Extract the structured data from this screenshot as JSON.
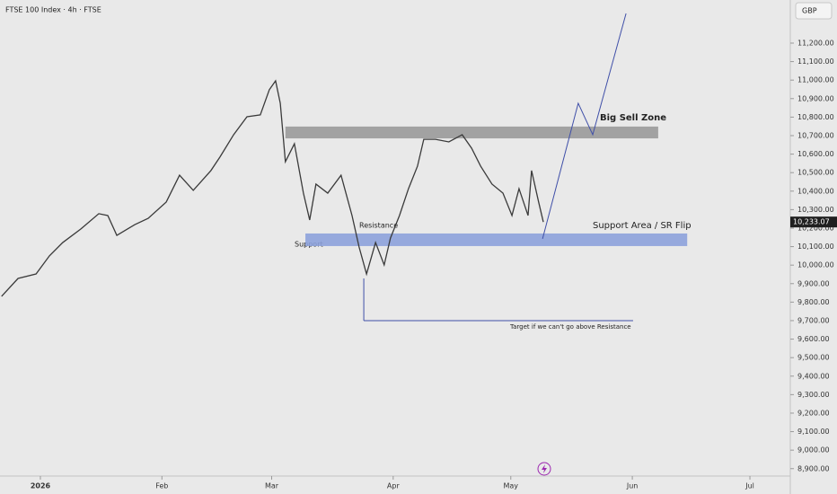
{
  "chart_data": {
    "type": "line",
    "title": "FTSE 100 Index · 4h · FTSE",
    "currency": "GBP",
    "x": [
      -9.9,
      -5.7,
      -1.1,
      2.3,
      5.7,
      10.3,
      14.9,
      17.2,
      19.5,
      24.1,
      27.5,
      32.1,
      35.5,
      39.0,
      43.5,
      45.8,
      49.3,
      52.7,
      56.1,
      58.4,
      60.0,
      61.2,
      62.5,
      64.8,
      67.1,
      68.7,
      70.3,
      73.3,
      76.7,
      79.5,
      81.3,
      83.2,
      85.5,
      87.7,
      89.3,
      91.6,
      93.9,
      96.2,
      97.8,
      100.8,
      104.2,
      107.6,
      110.0,
      112.3,
      115.2,
      118.0,
      120.3,
      122.1,
      124.4,
      125.3,
      127.1,
      128.3
    ],
    "series": [
      {
        "name": "FTSE 100 Index",
        "color": "#3a3a3a",
        "values": [
          9831,
          9928,
          9952,
          10050,
          10122,
          10195,
          10278,
          10268,
          10161,
          10219,
          10253,
          10341,
          10486,
          10404,
          10511,
          10584,
          10705,
          10802,
          10812,
          10948,
          10996,
          10875,
          10559,
          10656,
          10389,
          10244,
          10438,
          10389,
          10486,
          10268,
          10098,
          9952,
          10122,
          10001,
          10146,
          10268,
          10413,
          10535,
          10680,
          10680,
          10666,
          10705,
          10632,
          10535,
          10438,
          10389,
          10268,
          10413,
          10268,
          10511,
          10341,
          10233.07
        ]
      }
    ],
    "last_price": {
      "value": 10233.07,
      "label": "10,233.07"
    },
    "xlim": [
      -10.3,
      191.3
    ],
    "xticks": [
      {
        "value": 0,
        "label": "2026"
      },
      {
        "value": 31,
        "label": "Feb"
      },
      {
        "value": 59,
        "label": "Mar"
      },
      {
        "value": 90,
        "label": "Apr"
      },
      {
        "value": 120,
        "label": "May"
      },
      {
        "value": 151,
        "label": "Jun"
      },
      {
        "value": 181,
        "label": "Jul"
      }
    ],
    "ylim": [
      8860,
      11433
    ],
    "yticks": [
      {
        "value": 8900,
        "label": "8,900.00"
      },
      {
        "value": 9000,
        "label": "9,000.00"
      },
      {
        "value": 9100,
        "label": "9,100.00"
      },
      {
        "value": 9200,
        "label": "9,200.00"
      },
      {
        "value": 9300,
        "label": "9,300.00"
      },
      {
        "value": 9400,
        "label": "9,400.00"
      },
      {
        "value": 9500,
        "label": "9,500.00"
      },
      {
        "value": 9600,
        "label": "9,600.00"
      },
      {
        "value": 9700,
        "label": "9,700.00"
      },
      {
        "value": 9800,
        "label": "9,800.00"
      },
      {
        "value": 9900,
        "label": "9,900.00"
      },
      {
        "value": 10000,
        "label": "10,000.00"
      },
      {
        "value": 10100,
        "label": "10,100.00"
      },
      {
        "value": 10200,
        "label": "10,200.00"
      },
      {
        "value": 10300,
        "label": "10,300.00"
      },
      {
        "value": 10400,
        "label": "10,400.00"
      },
      {
        "value": 10500,
        "label": "10,500.00"
      },
      {
        "value": 10600,
        "label": "10,600.00"
      },
      {
        "value": 10700,
        "label": "10,700.00"
      },
      {
        "value": 10800,
        "label": "10,800.00"
      },
      {
        "value": 10900,
        "label": "10,900.00"
      },
      {
        "value": 11000,
        "label": "11,000.00"
      },
      {
        "value": 11100,
        "label": "11,100.00"
      },
      {
        "value": 11200,
        "label": "11,200.00"
      }
    ],
    "zones": [
      {
        "label": "Big Sell Zone",
        "x": [
          62.5,
          157.6
        ],
        "y": [
          10685,
          10749
        ],
        "color": "#9a9a9a"
      },
      {
        "label": "Support Area / SR Flip",
        "x": [
          67.6,
          165
        ],
        "y": [
          10103,
          10171
        ],
        "color": "#8da2dc"
      }
    ],
    "projection": {
      "x": [
        128.1,
        137.2,
        140.9,
        149.4
      ],
      "values": [
        10142,
        10875,
        10705,
        11360
      ],
      "color": "#3f4fa8"
    },
    "target": {
      "label": "Target if we can't go above Resistance",
      "x": [
        82.5,
        151.2
      ],
      "values": [
        9928,
        9700
      ],
      "color": "#3f4fa8"
    },
    "notes": [
      "Support",
      "Resistance"
    ]
  }
}
